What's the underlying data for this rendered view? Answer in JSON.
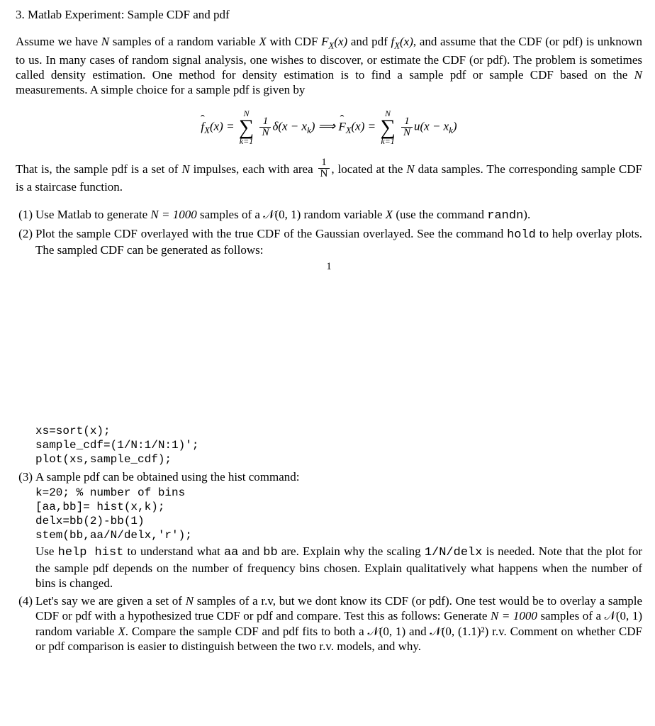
{
  "section": {
    "number": "3.",
    "title": "Matlab Experiment: Sample CDF and pdf"
  },
  "intro": {
    "p1a": "Assume we have ",
    "N1": "N",
    "p1b": " samples of a random variable ",
    "X1": "X",
    "p1c": " with CDF ",
    "FX": "F",
    "Xsub1": "X",
    "arg1": "(x)",
    "p1d": " and pdf ",
    "fX": "f",
    "Xsub2": "X",
    "arg2": "(x)",
    "p1e": ", and assume that the CDF (or pdf) is unknown to us.  In many cases of random signal analysis, one wishes to discover, or estimate the CDF (or pdf).  The problem is sometimes called density estimation.  One method for density estimation is to find a sample pdf or sample CDF based on the ",
    "N2": "N",
    "p1f": " measurements. A simple choice for a sample pdf is given by"
  },
  "equation": {
    "fhat": "f",
    "fsub": "X",
    "arg_l": "(x) = ",
    "sum_top1": "N",
    "sum_bot1": "k=1",
    "frac1_num": "1",
    "frac1_den": "N",
    "delta": "δ(x − x",
    "ksub1": "k",
    "close1": ")  ⟹  ",
    "Fhat": "F",
    "Fsub": "X",
    "arg_r": "(x) = ",
    "sum_top2": "N",
    "sum_bot2": "k=1",
    "frac2_num": "1",
    "frac2_den": "N",
    "u": "u(x − x",
    "ksub2": "k",
    "close2": ")"
  },
  "explain": {
    "a": "That is, the sample pdf is a set of ",
    "N": "N",
    "b": " impulses, each with area ",
    "frac_num": "1",
    "frac_den": "N",
    "c": ", located at the ",
    "N2": "N",
    "d": " data samples. The corresponding sample CDF is a staircase function."
  },
  "items": [
    {
      "label": "(1)",
      "a": "Use Matlab to generate ",
      "eq": "N = 1000",
      "b": " samples of a ",
      "dist": "𝒩(0, 1)",
      "c": " random variable ",
      "X": "X",
      "d": " (use the command ",
      "code": "randn",
      "e": ")."
    },
    {
      "label": "(2)",
      "a": "Plot the sample CDF overlayed with the true CDF of the Gaussian overlayed.  See the command ",
      "code": "hold",
      "b": " to help overlay plots.  The sampled CDF can be generated as follows:"
    }
  ],
  "page_num_mid": "1",
  "code2": "xs=sort(x);\nsample_cdf=(1/N:1/N:1)';\nplot(xs,sample_cdf);",
  "item3": {
    "label": "(3)",
    "intro": "A sample pdf can be obtained using the hist command:",
    "code": "k=20; % number of bins\n[aa,bb]= hist(x,k);\ndelx=bb(2)-bb(1)\nstem(bb,aa/N/delx,'r');",
    "tail_a": "Use ",
    "tail_code1": "help hist",
    "tail_b": " to understand what ",
    "tail_code2": "aa",
    "tail_c": " and ",
    "tail_code3": "bb",
    "tail_d": " are.  Explain why the scaling ",
    "tail_code4": "1/N/delx",
    "tail_e": " is needed.  Note that the plot for the sample pdf depends on the number of frequency bins chosen. Explain qualitatively what happens when the number of bins is changed."
  },
  "item4": {
    "label": "(4)",
    "a": "Let's say we are given a set of ",
    "N1": "N",
    "b": " samples of a r.v, but we dont know its CDF (or pdf).  One test would be to overlay a sample CDF or pdf with a hypothesized true CDF or pdf and compare.  Test this as follows:  Generate ",
    "eq": "N = 1000",
    "c": " samples of a ",
    "dist1": "𝒩(0, 1)",
    "d": " random variable ",
    "X": "X",
    "e": ". Compare the sample CDF and pdf fits to both a ",
    "dist2": "𝒩(0, 1)",
    "f": " and ",
    "dist3": "𝒩(0, (1.1)²)",
    "g": " r.v.  Comment on whether CDF or pdf comparison is easier to distinguish between the two r.v. models, and why."
  }
}
